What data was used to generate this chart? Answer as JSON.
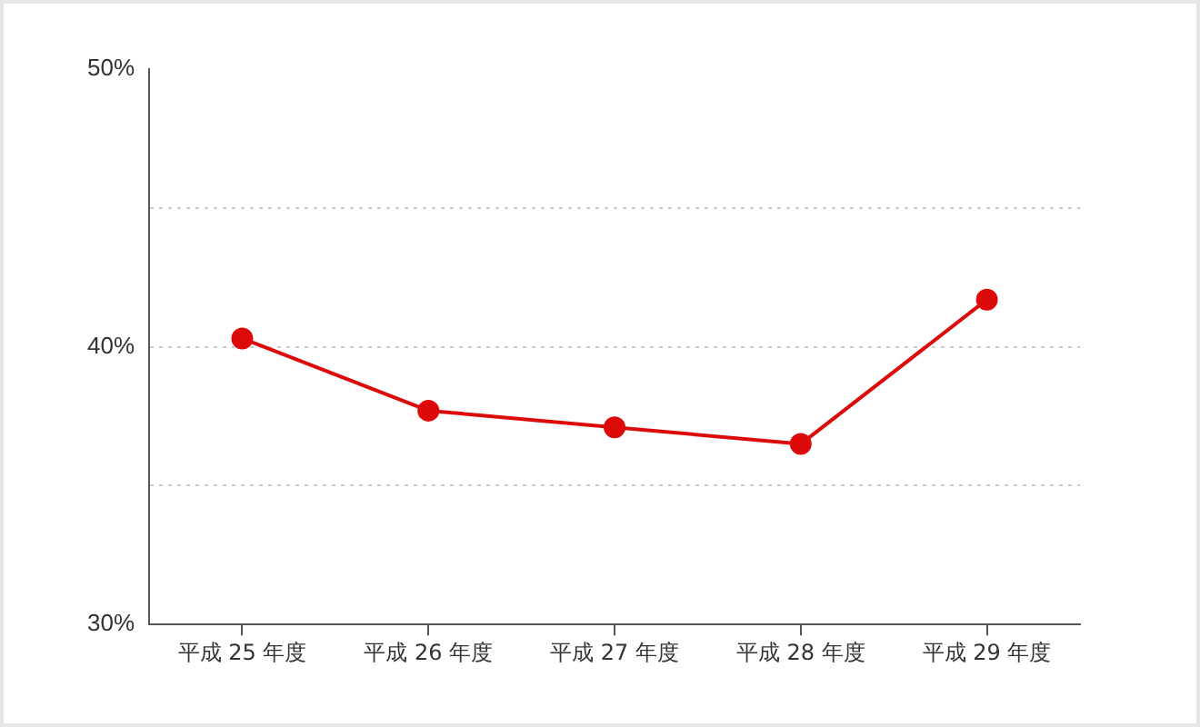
{
  "chart_data": {
    "type": "line",
    "categories": [
      "平成 25 年度",
      "平成 26 年度",
      "平成 27 年度",
      "平成 28 年度",
      "平成 29 年度"
    ],
    "series": [
      {
        "color": "#dd0a0a",
        "values": [
          40.3,
          37.7,
          37.1,
          36.5,
          41.7
        ]
      }
    ],
    "ylim": [
      30,
      50
    ],
    "yticks": [
      {
        "value": 30,
        "label": "30%"
      },
      {
        "value": 35,
        "label": null
      },
      {
        "value": 40,
        "label": "40%"
      },
      {
        "value": 45,
        "label": null
      },
      {
        "value": 50,
        "label": "50%"
      }
    ],
    "grid": "y",
    "legend": false,
    "marker": "circle",
    "line_style": "solid"
  }
}
